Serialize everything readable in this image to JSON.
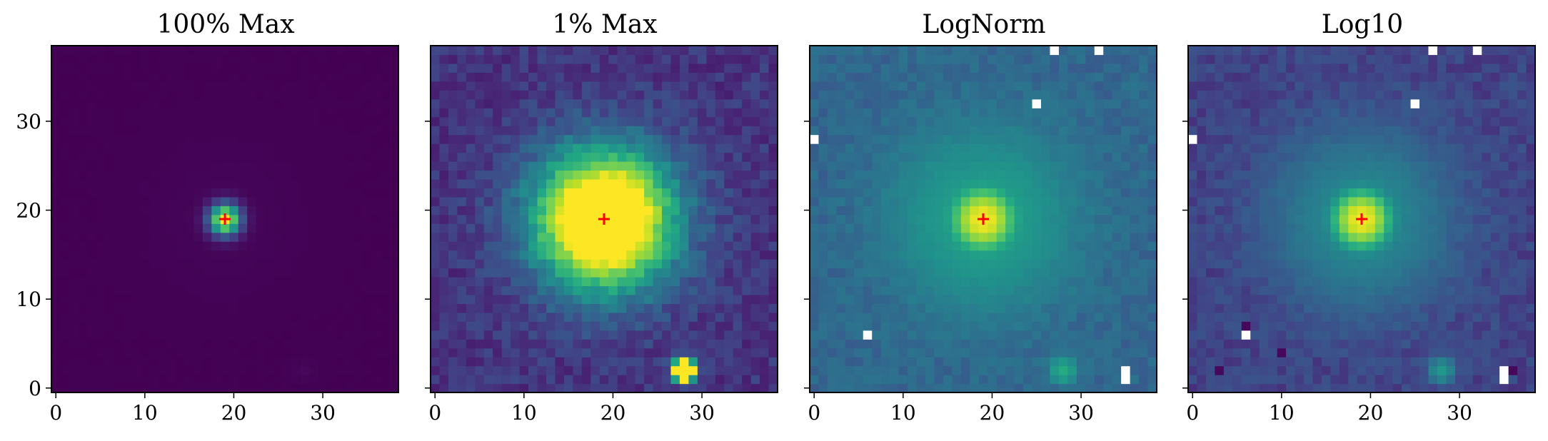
{
  "chart_data": [
    {
      "type": "heatmap",
      "title": "100% Max",
      "colormap": "viridis",
      "scale": "linear",
      "clip_max_fraction": 1.0,
      "source": {
        "center": [
          19,
          19
        ],
        "amplitude": 1.0,
        "sigma": 1.2
      },
      "secondary_source": {
        "center": [
          28,
          2
        ],
        "amplitude": 0.02
      },
      "marker": {
        "symbol": "+",
        "color": "#ff0000",
        "x": 19,
        "y": 19
      },
      "xlim": [
        -0.5,
        38.5
      ],
      "ylim": [
        -0.5,
        38.5
      ],
      "xticks": [
        0,
        10,
        20,
        30
      ],
      "yticks": [
        0,
        10,
        20,
        30
      ],
      "xtick_labels": [
        "0",
        "10",
        "20",
        "30"
      ],
      "ytick_labels": [
        "0",
        "10",
        "20",
        "30"
      ],
      "show_y_tick_labels": true,
      "xlabel": "",
      "ylabel": ""
    },
    {
      "type": "heatmap",
      "title": "1% Max",
      "colormap": "viridis",
      "scale": "linear",
      "clip_max_fraction": 0.01,
      "source": {
        "center": [
          19,
          19
        ],
        "amplitude": 1.0,
        "sigma": 1.2
      },
      "secondary_source": {
        "center": [
          28,
          2
        ],
        "amplitude": 0.02
      },
      "marker": {
        "symbol": "+",
        "color": "#ff0000",
        "x": 19,
        "y": 19
      },
      "xlim": [
        -0.5,
        38.5
      ],
      "ylim": [
        -0.5,
        38.5
      ],
      "xticks": [
        0,
        10,
        20,
        30
      ],
      "yticks": [
        0,
        10,
        20,
        30
      ],
      "xtick_labels": [
        "0",
        "10",
        "20",
        "30"
      ],
      "ytick_labels": [
        "",
        "",
        "",
        ""
      ],
      "show_y_tick_labels": false,
      "xlabel": "",
      "ylabel": ""
    },
    {
      "type": "heatmap",
      "title": "LogNorm",
      "colormap": "viridis",
      "scale": "log",
      "masked_pixels": [
        [
          27,
          38
        ],
        [
          32,
          38
        ],
        [
          25,
          32
        ],
        [
          0,
          28
        ],
        [
          6,
          6
        ],
        [
          35,
          2
        ],
        [
          35,
          1
        ]
      ],
      "source": {
        "center": [
          19,
          19
        ],
        "amplitude": 1.0,
        "sigma": 1.2
      },
      "secondary_source": {
        "center": [
          28,
          2
        ],
        "amplitude": 0.02
      },
      "marker": {
        "symbol": "+",
        "color": "#ff0000",
        "x": 19,
        "y": 19
      },
      "xlim": [
        -0.5,
        38.5
      ],
      "ylim": [
        -0.5,
        38.5
      ],
      "xticks": [
        0,
        10,
        20,
        30
      ],
      "yticks": [
        0,
        10,
        20,
        30
      ],
      "xtick_labels": [
        "0",
        "10",
        "20",
        "30"
      ],
      "ytick_labels": [
        "",
        "",
        "",
        ""
      ],
      "show_y_tick_labels": false,
      "xlabel": "",
      "ylabel": ""
    },
    {
      "type": "heatmap",
      "title": "Log10",
      "colormap": "viridis",
      "scale": "log10",
      "masked_pixels": [
        [
          27,
          38
        ],
        [
          32,
          38
        ],
        [
          25,
          32
        ],
        [
          0,
          28
        ],
        [
          6,
          6
        ],
        [
          35,
          2
        ],
        [
          35,
          1
        ]
      ],
      "dark_pixels": [
        [
          6,
          7
        ],
        [
          36,
          2
        ],
        [
          3,
          2
        ],
        [
          10,
          4
        ]
      ],
      "source": {
        "center": [
          19,
          19
        ],
        "amplitude": 1.0,
        "sigma": 1.2
      },
      "secondary_source": {
        "center": [
          28,
          2
        ],
        "amplitude": 0.02
      },
      "marker": {
        "symbol": "+",
        "color": "#ff0000",
        "x": 19,
        "y": 19
      },
      "xlim": [
        -0.5,
        38.5
      ],
      "ylim": [
        -0.5,
        38.5
      ],
      "xticks": [
        0,
        10,
        20,
        30
      ],
      "yticks": [
        0,
        10,
        20,
        30
      ],
      "xtick_labels": [
        "0",
        "10",
        "20",
        "30"
      ],
      "ytick_labels": [
        "",
        "",
        "",
        ""
      ],
      "show_y_tick_labels": false,
      "xlabel": "",
      "ylabel": ""
    }
  ]
}
